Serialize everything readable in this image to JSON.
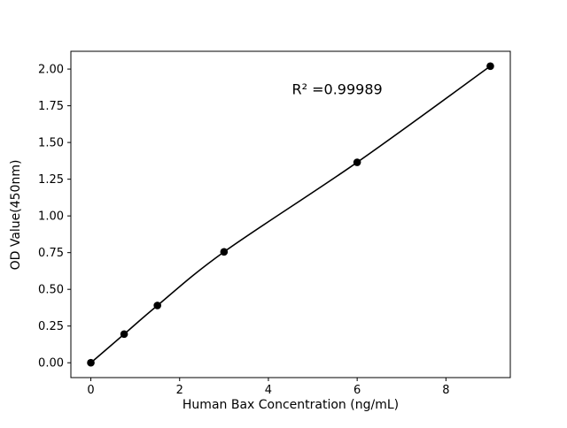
{
  "figure": {
    "background": "#ffffff"
  },
  "chart_data": {
    "type": "scatter",
    "title": "",
    "x": [
      0,
      0.75,
      1.5,
      3,
      6,
      9
    ],
    "y": [
      0.0,
      0.195,
      0.39,
      0.755,
      1.365,
      2.02
    ],
    "xlabel": "Human Bax Concentration (ng/mL)",
    "ylabel": "OD Value(450nm)",
    "xticks": [
      0,
      2,
      4,
      6,
      8
    ],
    "yticks": [
      0,
      0.25,
      0.5,
      0.75,
      1.0,
      1.25,
      1.5,
      1.75,
      2.0
    ],
    "xlim": [
      -0.45,
      9.45
    ],
    "ylim": [
      -0.101,
      2.121
    ],
    "grid": false,
    "legend": null,
    "line_color": "#000000",
    "marker_color": "#000000",
    "marker": "circle",
    "annotation": {
      "text": "R² =0.99989",
      "x": 5.55,
      "y": 1.83
    }
  }
}
